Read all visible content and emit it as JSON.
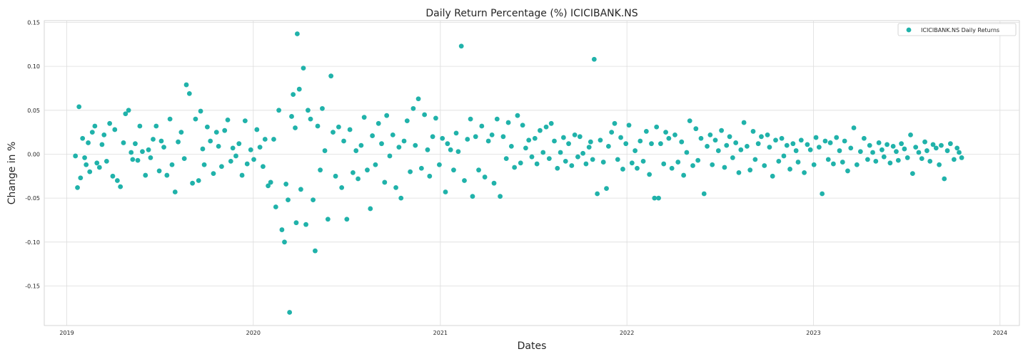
{
  "chart_data": {
    "type": "scatter",
    "title": "Daily Return Percentage (%) ICICIBANK.NS",
    "xlabel": "Dates",
    "ylabel": "Change in %",
    "x_ticks": [
      "2019",
      "2020",
      "2021",
      "2022",
      "2023",
      "2024"
    ],
    "y_ticks": [
      "0.15",
      "0.10",
      "0.05",
      "0.00",
      "-0.05",
      "-0.10",
      "-0.15"
    ],
    "xlim": [
      "2018-11-18",
      "2024-02-08"
    ],
    "ylim": [
      -0.195,
      0.152
    ],
    "grid": true,
    "legend_position": "top-right",
    "series": [
      {
        "name": "ICICIBANK.NS Daily Returns",
        "color": "#20b2aa",
        "x": [
          "2019-01-18",
          "2019-01-22",
          "2019-01-25",
          "2019-01-28",
          "2019-02-01",
          "2019-02-05",
          "2019-02-08",
          "2019-02-12",
          "2019-02-15",
          "2019-02-20",
          "2019-02-25",
          "2019-03-01",
          "2019-03-06",
          "2019-03-11",
          "2019-03-15",
          "2019-03-20",
          "2019-03-26",
          "2019-04-01",
          "2019-04-05",
          "2019-04-10",
          "2019-04-16",
          "2019-04-22",
          "2019-04-26",
          "2019-05-02",
          "2019-05-07",
          "2019-05-10",
          "2019-05-15",
          "2019-05-20",
          "2019-05-24",
          "2019-05-29",
          "2019-06-04",
          "2019-06-10",
          "2019-06-14",
          "2019-06-19",
          "2019-06-25",
          "2019-07-01",
          "2019-07-05",
          "2019-07-10",
          "2019-07-16",
          "2019-07-22",
          "2019-07-26",
          "2019-08-01",
          "2019-08-07",
          "2019-08-13",
          "2019-08-19",
          "2019-08-23",
          "2019-08-29",
          "2019-09-04",
          "2019-09-10",
          "2019-09-16",
          "2019-09-20",
          "2019-09-24",
          "2019-09-27",
          "2019-10-03",
          "2019-10-09",
          "2019-10-15",
          "2019-10-21",
          "2019-10-25",
          "2019-10-31",
          "2019-11-06",
          "2019-11-12",
          "2019-11-18",
          "2019-11-22",
          "2019-11-28",
          "2019-12-04",
          "2019-12-10",
          "2019-12-16",
          "2019-12-20",
          "2019-12-27",
          "2020-01-02",
          "2020-01-08",
          "2020-01-14",
          "2020-01-20",
          "2020-01-24",
          "2020-01-30",
          "2020-02-04",
          "2020-02-10",
          "2020-02-14",
          "2020-02-20",
          "2020-02-26",
          "2020-03-02",
          "2020-03-05",
          "2020-03-09",
          "2020-03-12",
          "2020-03-16",
          "2020-03-19",
          "2020-03-23",
          "2020-03-25",
          "2020-03-27",
          "2020-03-31",
          "2020-04-03",
          "2020-04-08",
          "2020-04-13",
          "2020-04-17",
          "2020-04-22",
          "2020-04-27",
          "2020-05-01",
          "2020-05-06",
          "2020-05-11",
          "2020-05-15",
          "2020-05-20",
          "2020-05-26",
          "2020-06-01",
          "2020-06-05",
          "2020-06-10",
          "2020-06-16",
          "2020-06-22",
          "2020-06-26",
          "2020-07-02",
          "2020-07-08",
          "2020-07-14",
          "2020-07-20",
          "2020-07-24",
          "2020-07-30",
          "2020-08-05",
          "2020-08-11",
          "2020-08-17",
          "2020-08-21",
          "2020-08-27",
          "2020-09-02",
          "2020-09-08",
          "2020-09-14",
          "2020-09-18",
          "2020-09-24",
          "2020-09-30",
          "2020-10-06",
          "2020-10-12",
          "2020-10-16",
          "2020-10-22",
          "2020-10-28",
          "2020-11-03",
          "2020-11-09",
          "2020-11-13",
          "2020-11-19",
          "2020-11-25",
          "2020-12-01",
          "2020-12-07",
          "2020-12-11",
          "2020-12-17",
          "2020-12-23",
          "2020-12-30",
          "2021-01-05",
          "2021-01-11",
          "2021-01-15",
          "2021-01-21",
          "2021-01-27",
          "2021-02-01",
          "2021-02-05",
          "2021-02-11",
          "2021-02-17",
          "2021-02-23",
          "2021-03-01",
          "2021-03-05",
          "2021-03-11",
          "2021-03-17",
          "2021-03-23",
          "2021-03-29",
          "2021-04-05",
          "2021-04-12",
          "2021-04-16",
          "2021-04-22",
          "2021-04-28",
          "2021-05-04",
          "2021-05-10",
          "2021-05-14",
          "2021-05-20",
          "2021-05-26",
          "2021-06-01",
          "2021-06-07",
          "2021-06-11",
          "2021-06-17",
          "2021-06-23",
          "2021-06-29",
          "2021-07-05",
          "2021-07-09",
          "2021-07-15",
          "2021-07-21",
          "2021-07-27",
          "2021-08-02",
          "2021-08-06",
          "2021-08-12",
          "2021-08-18",
          "2021-08-24",
          "2021-08-30",
          "2021-09-03",
          "2021-09-09",
          "2021-09-15",
          "2021-09-21",
          "2021-09-27",
          "2021-10-01",
          "2021-10-07",
          "2021-10-13",
          "2021-10-19",
          "2021-10-22",
          "2021-10-26",
          "2021-10-29",
          "2021-11-04",
          "2021-11-10",
          "2021-11-16",
          "2021-11-22",
          "2021-11-26",
          "2021-12-02",
          "2021-12-08",
          "2021-12-14",
          "2021-12-20",
          "2021-12-24",
          "2021-12-30",
          "2022-01-05",
          "2022-01-11",
          "2022-01-17",
          "2022-01-21",
          "2022-01-27",
          "2022-02-02",
          "2022-02-08",
          "2022-02-14",
          "2022-02-18",
          "2022-02-24",
          "2022-02-28",
          "2022-03-04",
          "2022-03-08",
          "2022-03-14",
          "2022-03-18",
          "2022-03-24",
          "2022-03-30",
          "2022-04-05",
          "2022-04-11",
          "2022-04-18",
          "2022-04-22",
          "2022-04-28",
          "2022-05-04",
          "2022-05-10",
          "2022-05-16",
          "2022-05-20",
          "2022-05-26",
          "2022-06-01",
          "2022-06-07",
          "2022-06-13",
          "2022-06-17",
          "2022-06-23",
          "2022-06-29",
          "2022-07-05",
          "2022-07-11",
          "2022-07-15",
          "2022-07-21",
          "2022-07-27",
          "2022-08-02",
          "2022-08-08",
          "2022-08-12",
          "2022-08-18",
          "2022-08-24",
          "2022-08-30",
          "2022-09-05",
          "2022-09-09",
          "2022-09-15",
          "2022-09-21",
          "2022-09-27",
          "2022-10-03",
          "2022-10-07",
          "2022-10-13",
          "2022-10-19",
          "2022-10-25",
          "2022-10-31",
          "2022-11-04",
          "2022-11-10",
          "2022-11-16",
          "2022-11-22",
          "2022-11-28",
          "2022-12-02",
          "2022-12-08",
          "2022-12-14",
          "2022-12-20",
          "2022-12-26",
          "2023-01-02",
          "2023-01-06",
          "2023-01-12",
          "2023-01-18",
          "2023-01-24",
          "2023-01-30",
          "2023-02-03",
          "2023-02-09",
          "2023-02-15",
          "2023-02-21",
          "2023-02-27",
          "2023-03-03",
          "2023-03-09",
          "2023-03-15",
          "2023-03-21",
          "2023-03-27",
          "2023-04-03",
          "2023-04-10",
          "2023-04-17",
          "2023-04-21",
          "2023-04-27",
          "2023-05-03",
          "2023-05-09",
          "2023-05-15",
          "2023-05-19",
          "2023-05-25",
          "2023-05-31",
          "2023-06-06",
          "2023-06-12",
          "2023-06-16",
          "2023-06-22",
          "2023-06-28",
          "2023-07-04",
          "2023-07-10",
          "2023-07-14",
          "2023-07-20",
          "2023-07-26",
          "2023-08-01",
          "2023-08-07",
          "2023-08-11",
          "2023-08-17",
          "2023-08-23",
          "2023-08-29",
          "2023-09-04",
          "2023-09-08",
          "2023-09-14",
          "2023-09-20",
          "2023-09-26",
          "2023-10-03",
          "2023-10-09",
          "2023-10-13",
          "2023-10-18"
        ],
        "y": [
          -0.002,
          -0.038,
          0.054,
          -0.027,
          0.018,
          -0.004,
          -0.012,
          0.013,
          -0.02,
          0.025,
          0.032,
          -0.01,
          -0.015,
          0.011,
          0.022,
          -0.008,
          0.035,
          -0.025,
          0.028,
          -0.03,
          -0.037,
          0.013,
          0.046,
          0.05,
          0.002,
          -0.006,
          0.012,
          -0.007,
          0.032,
          0.003,
          -0.024,
          0.005,
          -0.004,
          0.017,
          0.032,
          -0.019,
          0.015,
          0.008,
          -0.024,
          0.04,
          -0.012,
          -0.043,
          0.014,
          0.025,
          -0.005,
          0.079,
          0.069,
          -0.033,
          0.04,
          -0.03,
          0.049,
          0.006,
          -0.012,
          0.031,
          0.015,
          -0.022,
          0.025,
          0.009,
          -0.014,
          0.027,
          0.039,
          -0.008,
          0.007,
          -0.002,
          0.012,
          -0.024,
          0.038,
          -0.011,
          0.005,
          -0.006,
          0.028,
          0.008,
          -0.014,
          0.017,
          -0.036,
          -0.032,
          0.017,
          -0.06,
          0.05,
          -0.086,
          -0.1,
          -0.034,
          -0.052,
          -0.18,
          0.043,
          0.068,
          0.03,
          -0.078,
          0.137,
          0.074,
          -0.04,
          0.098,
          -0.08,
          0.05,
          0.04,
          -0.052,
          -0.11,
          0.032,
          -0.018,
          0.052,
          0.004,
          -0.074,
          0.089,
          0.025,
          -0.025,
          0.031,
          -0.038,
          0.015,
          -0.074,
          0.028,
          -0.021,
          0.004,
          -0.028,
          0.01,
          0.042,
          -0.018,
          -0.062,
          0.021,
          -0.012,
          0.035,
          0.012,
          -0.032,
          0.044,
          -0.002,
          0.022,
          -0.038,
          0.008,
          -0.05,
          0.015,
          0.038,
          -0.02,
          0.052,
          0.01,
          0.063,
          -0.016,
          0.045,
          0.005,
          -0.025,
          0.02,
          0.041,
          -0.012,
          0.018,
          -0.043,
          0.012,
          0.005,
          -0.018,
          0.024,
          0.003,
          0.123,
          -0.03,
          0.017,
          0.04,
          -0.048,
          0.02,
          -0.018,
          0.032,
          -0.026,
          0.015,
          0.022,
          -0.033,
          0.04,
          -0.048,
          0.02,
          -0.005,
          0.036,
          0.009,
          -0.015,
          0.044,
          -0.01,
          0.033,
          0.007,
          0.016,
          -0.003,
          0.018,
          -0.011,
          0.027,
          0.002,
          0.031,
          -0.005,
          0.035,
          0.015,
          -0.016,
          0.002,
          0.019,
          -0.008,
          0.012,
          -0.013,
          0.022,
          -0.003,
          0.02,
          0.001,
          -0.011,
          0.008,
          0.014,
          -0.006,
          0.108,
          -0.045,
          0.016,
          -0.009,
          -0.039,
          0.009,
          0.025,
          0.035,
          -0.006,
          0.019,
          -0.017,
          0.012,
          0.033,
          -0.01,
          0.004,
          -0.016,
          0.015,
          -0.008,
          0.026,
          -0.023,
          0.012,
          -0.05,
          0.031,
          -0.05,
          0.012,
          -0.011,
          0.025,
          0.018,
          -0.016,
          0.022,
          -0.009,
          0.014,
          -0.024,
          0.002,
          0.038,
          -0.013,
          0.029,
          -0.007,
          0.018,
          -0.045,
          0.009,
          0.022,
          -0.012,
          0.016,
          0.004,
          0.027,
          -0.015,
          0.01,
          0.02,
          -0.004,
          0.013,
          -0.021,
          0.005,
          0.036,
          0.009,
          -0.018,
          0.026,
          -0.006,
          0.012,
          0.02,
          -0.013,
          0.022,
          0.008,
          -0.025,
          0.016,
          -0.008,
          0.018,
          -0.002,
          0.01,
          -0.017,
          0.012,
          0.004,
          -0.009,
          0.016,
          -0.021,
          0.011,
          0.005,
          -0.012,
          0.019,
          0.008,
          -0.045,
          0.015,
          -0.006,
          0.013,
          -0.011,
          0.019,
          0.004,
          -0.009,
          0.015,
          -0.019,
          0.007,
          0.03,
          -0.012,
          0.003,
          0.018,
          -0.006,
          0.01,
          0.002,
          -0.008,
          0.013,
          0.005,
          -0.003,
          0.011,
          -0.01,
          0.009,
          0.003,
          -0.007,
          0.012,
          0.006,
          -0.004,
          0.022,
          -0.022,
          0.008,
          0.002,
          -0.005,
          0.014,
          0.004,
          -0.008,
          0.011,
          0.007,
          -0.012,
          0.01,
          -0.028,
          0.004,
          0.012,
          -0.006,
          0.007,
          0.002,
          -0.004
        ]
      }
    ]
  }
}
